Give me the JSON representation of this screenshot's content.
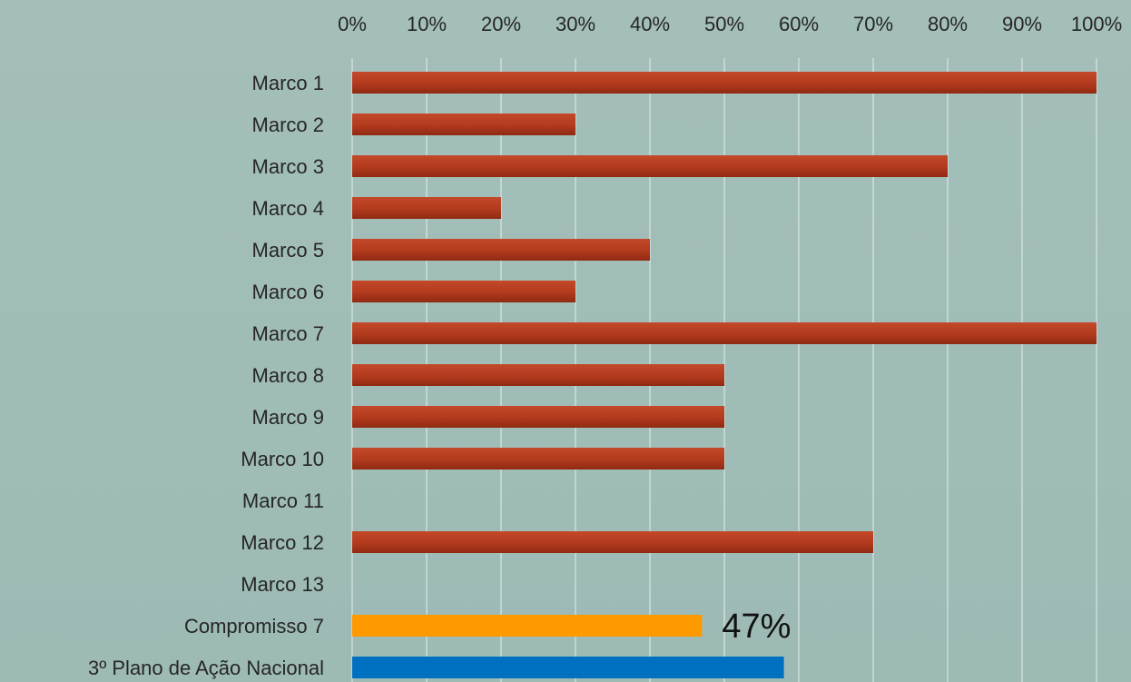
{
  "chart_data": {
    "type": "bar",
    "orientation": "horizontal",
    "title": "",
    "xlabel": "",
    "ylabel": "",
    "xlim": [
      0,
      1
    ],
    "x_axis_position": "top",
    "grid": true,
    "legend": "none",
    "tick_labels": [
      "0%",
      "10%",
      "20%",
      "30%",
      "40%",
      "50%",
      "60%",
      "70%",
      "80%",
      "90%",
      "100%"
    ],
    "categories": [
      "Marco 1",
      "Marco 2",
      "Marco 3",
      "Marco 4",
      "Marco 5",
      "Marco 6",
      "Marco 7",
      "Marco 8",
      "Marco 9",
      "Marco 10",
      "Marco 11",
      "Marco 12",
      "Marco 13",
      "Compromisso 7",
      "3º Plano de Ação Nacional"
    ],
    "values": [
      1.0,
      0.3,
      0.8,
      0.2,
      0.4,
      0.3,
      1.0,
      0.5,
      0.5,
      0.5,
      0,
      0.7,
      0,
      0.47,
      0.58
    ],
    "bar_colors": [
      "#b23a1e",
      "#b23a1e",
      "#b23a1e",
      "#b23a1e",
      "#b23a1e",
      "#b23a1e",
      "#b23a1e",
      "#b23a1e",
      "#b23a1e",
      "#b23a1e",
      "#b23a1e",
      "#b23a1e",
      "#b23a1e",
      "#ff9900",
      "#0070c0"
    ],
    "annotations": [
      {
        "category": "Compromisso 7",
        "text": "47%"
      }
    ]
  }
}
